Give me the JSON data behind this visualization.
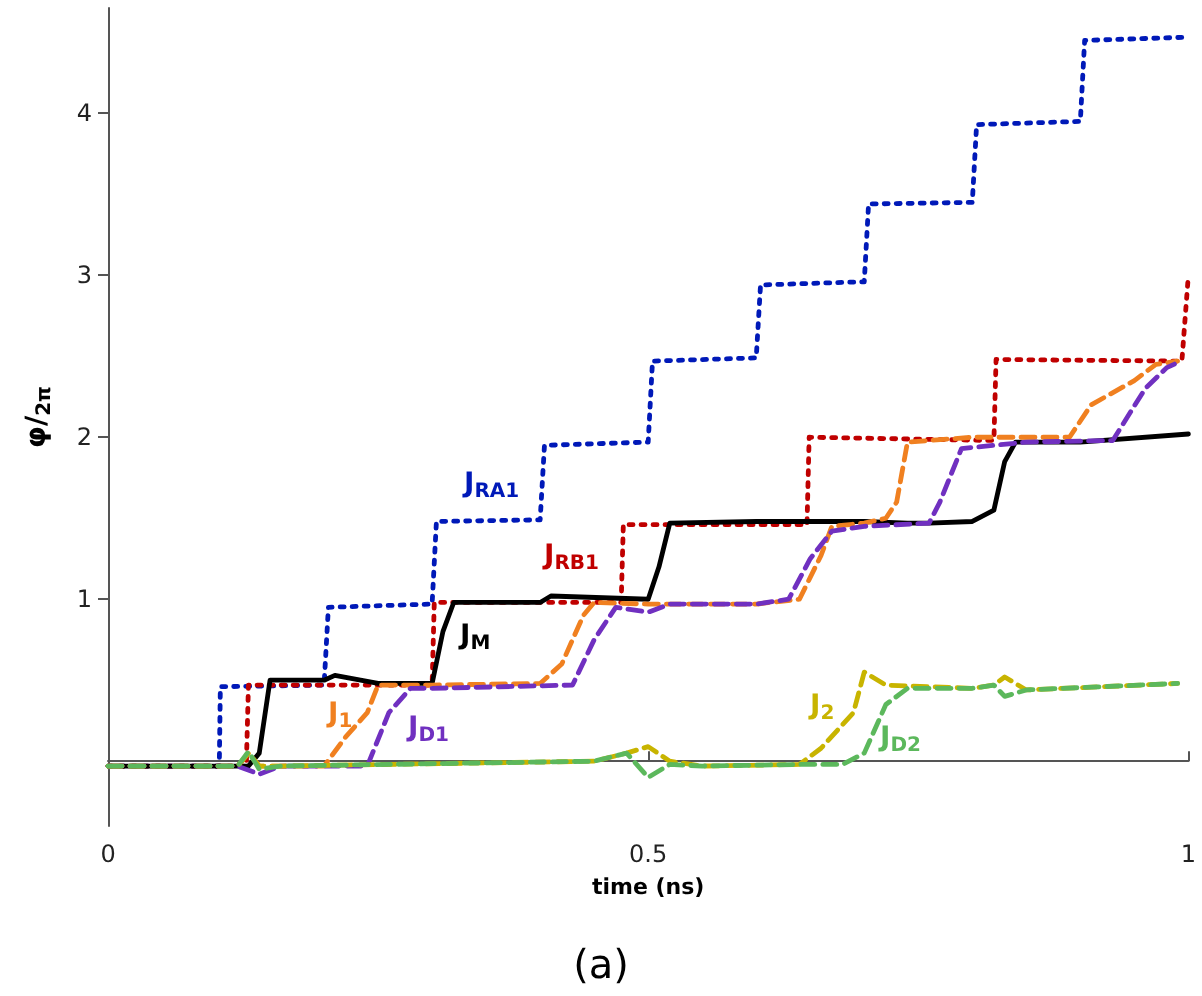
{
  "chart_data": {
    "type": "line",
    "xlabel": "time (ns)",
    "ylabel": "φ/$_{2π}$",
    "xlim": [
      0,
      1
    ],
    "xticks": [
      0,
      0.5,
      1
    ],
    "ylim": [
      -0.4,
      4.65
    ],
    "yticks": [
      1,
      2,
      3,
      4
    ],
    "grid": false,
    "legend": false,
    "marker": "none",
    "series": [
      {
        "name": "J$_{RA1}$",
        "color": "#0019b8",
        "line_style": "dotted",
        "x": [
          0,
          0.103,
          0.104,
          0.2,
          0.204,
          0.3,
          0.304,
          0.4,
          0.404,
          0.5,
          0.504,
          0.6,
          0.604,
          0.7,
          0.704,
          0.8,
          0.804,
          0.9,
          0.904,
          1
        ],
        "values": [
          -0.03,
          -0.03,
          0.46,
          0.47,
          0.95,
          0.97,
          1.48,
          1.49,
          1.95,
          1.97,
          2.47,
          2.49,
          2.94,
          2.96,
          3.44,
          3.45,
          3.93,
          3.95,
          4.45,
          4.47
        ]
      },
      {
        "name": "J$_{RB1}$",
        "color": "#c00000",
        "line_style": "dotted",
        "x": [
          0,
          0.128,
          0.13,
          0.3,
          0.302,
          0.475,
          0.477,
          0.647,
          0.649,
          0.82,
          0.822,
          0.994,
          1
        ],
        "values": [
          -0.03,
          -0.03,
          0.47,
          0.47,
          0.98,
          0.98,
          1.46,
          1.46,
          2.0,
          1.98,
          2.48,
          2.47,
          3.0
        ]
      },
      {
        "name": "J$_{M}$",
        "color": "#000000",
        "line_style": "solid",
        "x": [
          0,
          0.13,
          0.14,
          0.15,
          0.2,
          0.21,
          0.25,
          0.3,
          0.31,
          0.32,
          0.4,
          0.41,
          0.5,
          0.51,
          0.52,
          0.6,
          0.7,
          0.74,
          0.76,
          0.8,
          0.82,
          0.83,
          0.84,
          0.9,
          1
        ],
        "values": [
          -0.03,
          -0.03,
          0.05,
          0.5,
          0.5,
          0.53,
          0.48,
          0.48,
          0.8,
          0.98,
          0.98,
          1.02,
          1.0,
          1.2,
          1.47,
          1.48,
          1.48,
          1.47,
          1.47,
          1.48,
          1.55,
          1.85,
          1.97,
          1.97,
          2.02
        ]
      },
      {
        "name": "J$_{1}$",
        "color": "#f08020",
        "line_style": "dashed",
        "x": [
          0,
          0.12,
          0.13,
          0.14,
          0.2,
          0.22,
          0.24,
          0.25,
          0.3,
          0.4,
          0.42,
          0.44,
          0.45,
          0.5,
          0.6,
          0.64,
          0.66,
          0.67,
          0.7,
          0.72,
          0.73,
          0.74,
          0.8,
          0.89,
          0.91,
          0.95,
          0.97,
          0.99
        ],
        "values": [
          -0.03,
          -0.03,
          0.05,
          -0.03,
          -0.03,
          0.15,
          0.3,
          0.47,
          0.47,
          0.48,
          0.6,
          0.9,
          0.98,
          0.97,
          0.97,
          1.0,
          1.27,
          1.45,
          1.47,
          1.5,
          1.6,
          1.97,
          2.0,
          2.0,
          2.2,
          2.35,
          2.45,
          2.47
        ]
      },
      {
        "name": "J$_{D1}$",
        "color": "#7030c0",
        "line_style": "dashed",
        "x": [
          0,
          0.12,
          0.14,
          0.16,
          0.24,
          0.26,
          0.28,
          0.3,
          0.43,
          0.45,
          0.47,
          0.5,
          0.52,
          0.6,
          0.63,
          0.65,
          0.67,
          0.7,
          0.76,
          0.77,
          0.79,
          0.85,
          0.93,
          0.96,
          0.98,
          0.99
        ],
        "values": [
          -0.03,
          -0.03,
          -0.08,
          -0.03,
          -0.03,
          0.3,
          0.45,
          0.45,
          0.47,
          0.75,
          0.95,
          0.92,
          0.97,
          0.97,
          1.0,
          1.25,
          1.42,
          1.45,
          1.47,
          1.6,
          1.93,
          1.97,
          1.98,
          2.3,
          2.43,
          2.46
        ]
      },
      {
        "name": "J$_{2}$",
        "color": "#c8b400",
        "line_style": "dashed",
        "x": [
          0,
          0.12,
          0.13,
          0.14,
          0.16,
          0.45,
          0.48,
          0.5,
          0.52,
          0.55,
          0.64,
          0.66,
          0.69,
          0.7,
          0.72,
          0.8,
          0.82,
          0.83,
          0.85,
          0.99
        ],
        "values": [
          -0.03,
          -0.03,
          0.05,
          -0.03,
          -0.03,
          0.0,
          0.05,
          0.09,
          0.0,
          -0.03,
          -0.02,
          0.08,
          0.3,
          0.55,
          0.47,
          0.45,
          0.47,
          0.52,
          0.44,
          0.48
        ]
      },
      {
        "name": "J$_{D2}$",
        "color": "#5cb85c",
        "line_style": "dashed",
        "x": [
          0,
          0.12,
          0.13,
          0.14,
          0.16,
          0.45,
          0.48,
          0.5,
          0.52,
          0.55,
          0.64,
          0.68,
          0.7,
          0.72,
          0.74,
          0.8,
          0.82,
          0.83,
          0.85,
          0.99
        ],
        "values": [
          -0.03,
          -0.03,
          0.06,
          -0.05,
          -0.03,
          0.0,
          0.05,
          -0.1,
          -0.02,
          -0.03,
          -0.02,
          -0.02,
          0.05,
          0.35,
          0.45,
          0.45,
          0.47,
          0.4,
          0.44,
          0.48
        ]
      }
    ],
    "annotations": [
      "(a)"
    ]
  }
}
